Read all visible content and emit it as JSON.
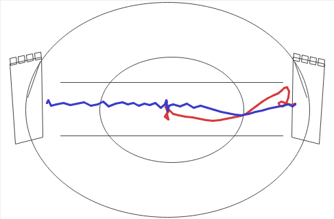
{
  "chart_data": {
    "type": "line",
    "tick_labels": false,
    "xlim": [
      0,
      487
    ],
    "ylim": [
      320,
      0
    ],
    "series": [
      {
        "color": "#d63a3a",
        "x": [
          243,
          241,
          244,
          240,
          245,
          243,
          246,
          252,
          260,
          270,
          280,
          290,
          300,
          310,
          320,
          330,
          340,
          350,
          358,
          366,
          374,
          382,
          390,
          398,
          405,
          410,
          414,
          418,
          421,
          420,
          417,
          412,
          407,
          406,
          410,
          418,
          425,
          430
        ],
        "values": [
          148,
          156,
          163,
          170,
          174,
          166,
          160,
          166,
          168,
          170,
          171,
          173,
          175,
          176,
          175,
          173,
          171,
          169,
          166,
          160,
          154,
          148,
          143,
          139,
          136,
          132,
          128,
          127,
          133,
          142,
          150,
          155,
          154,
          150,
          148,
          151,
          153,
          151
        ]
      },
      {
        "color": "#3b3bc8",
        "x": [
          68,
          70,
          74,
          82,
          92,
          102,
          112,
          122,
          132,
          142,
          150,
          158,
          168,
          178,
          186,
          194,
          202,
          210,
          218,
          226,
          234,
          240,
          242,
          244,
          246,
          252,
          262,
          272,
          282,
          292,
          302,
          312,
          322,
          332,
          342,
          352,
          362,
          372,
          382,
          392,
          402,
          412,
          420,
          426,
          430
        ],
        "values": [
          150,
          146,
          154,
          152,
          150,
          153,
          151,
          149,
          154,
          152,
          148,
          155,
          151,
          149,
          152,
          150,
          154,
          151,
          153,
          150,
          157,
          152,
          146,
          162,
          154,
          152,
          155,
          151,
          157,
          154,
          157,
          160,
          163,
          165,
          167,
          168,
          166,
          163,
          161,
          158,
          156,
          154,
          152,
          155,
          152
        ]
      }
    ]
  }
}
